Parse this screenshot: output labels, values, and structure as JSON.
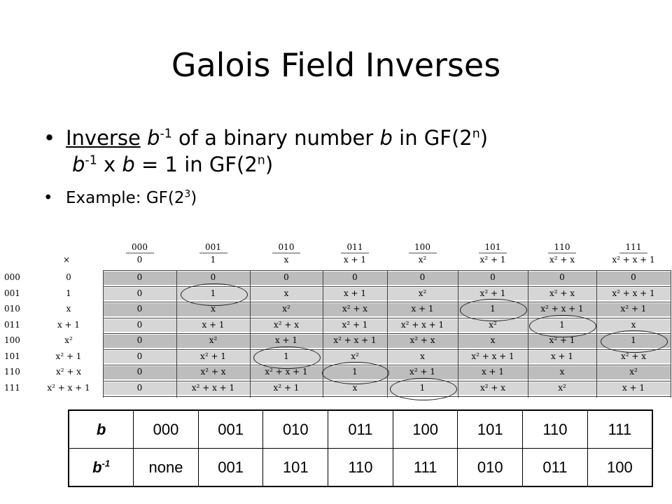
{
  "title": "Galois Field Inverses",
  "bullet1": {
    "term": "Inverse",
    "var_b": "b",
    "sup_neg1": "-1",
    "text_mid": "of a binary number",
    "var_b2": "b",
    "text_in": "in GF(2",
    "sup_n": "n",
    "close": ")",
    "line2_var": "b",
    "line2_sup": "-1",
    "line2_x": "x",
    "line2_var2": "b",
    "line2_rest": "= 1 in GF(2",
    "line2_sup_n": "n",
    "line2_close": ")"
  },
  "bullet2": {
    "text": "Example: GF(2",
    "sup": "3",
    "close": ")"
  },
  "mult_table": {
    "col_binary": [
      "000",
      "001",
      "010",
      "011",
      "100",
      "101",
      "110",
      "111"
    ],
    "col_poly": [
      "0",
      "1",
      "x",
      "x + 1",
      "x²",
      "x² + 1",
      "x² + x",
      "x² + x + 1"
    ],
    "corner": "×",
    "row_binary": [
      "000",
      "001",
      "010",
      "011",
      "100",
      "101",
      "110",
      "111"
    ],
    "row_poly": [
      "0",
      "1",
      "x",
      "x + 1",
      "x²",
      "x² + 1",
      "x² + x",
      "x² + x + 1"
    ],
    "cells": [
      [
        "0",
        "0",
        "0",
        "0",
        "0",
        "0",
        "0",
        "0"
      ],
      [
        "0",
        "1",
        "x",
        "x + 1",
        "x²",
        "x² + 1",
        "x² + x",
        "x² + x + 1"
      ],
      [
        "0",
        "x",
        "x²",
        "x² + x",
        "x + 1",
        "1",
        "x² + x + 1",
        "x² + 1"
      ],
      [
        "0",
        "x + 1",
        "x² + x",
        "x² + 1",
        "x² + x + 1",
        "x²",
        "1",
        "x"
      ],
      [
        "0",
        "x²",
        "x + 1",
        "x² + x + 1",
        "x² + x",
        "x",
        "x² + 1",
        "1"
      ],
      [
        "0",
        "x² + 1",
        "1",
        "x²",
        "x",
        "x² + x + 1",
        "x + 1",
        "x² + x"
      ],
      [
        "0",
        "x² + x",
        "x² + x + 1",
        "1",
        "x² + 1",
        "x + 1",
        "x",
        "x²"
      ],
      [
        "0",
        "x² + x + 1",
        "x² + 1",
        "x",
        "1",
        "x² + x",
        "x²",
        "x + 1"
      ]
    ]
  },
  "inverse_table": {
    "row1_label": "b",
    "row1": [
      "000",
      "001",
      "010",
      "011",
      "100",
      "101",
      "110",
      "111"
    ],
    "row2_label": "b",
    "row2_label_sup": "-1",
    "row2": [
      "none",
      "001",
      "101",
      "110",
      "111",
      "010",
      "011",
      "100"
    ]
  }
}
